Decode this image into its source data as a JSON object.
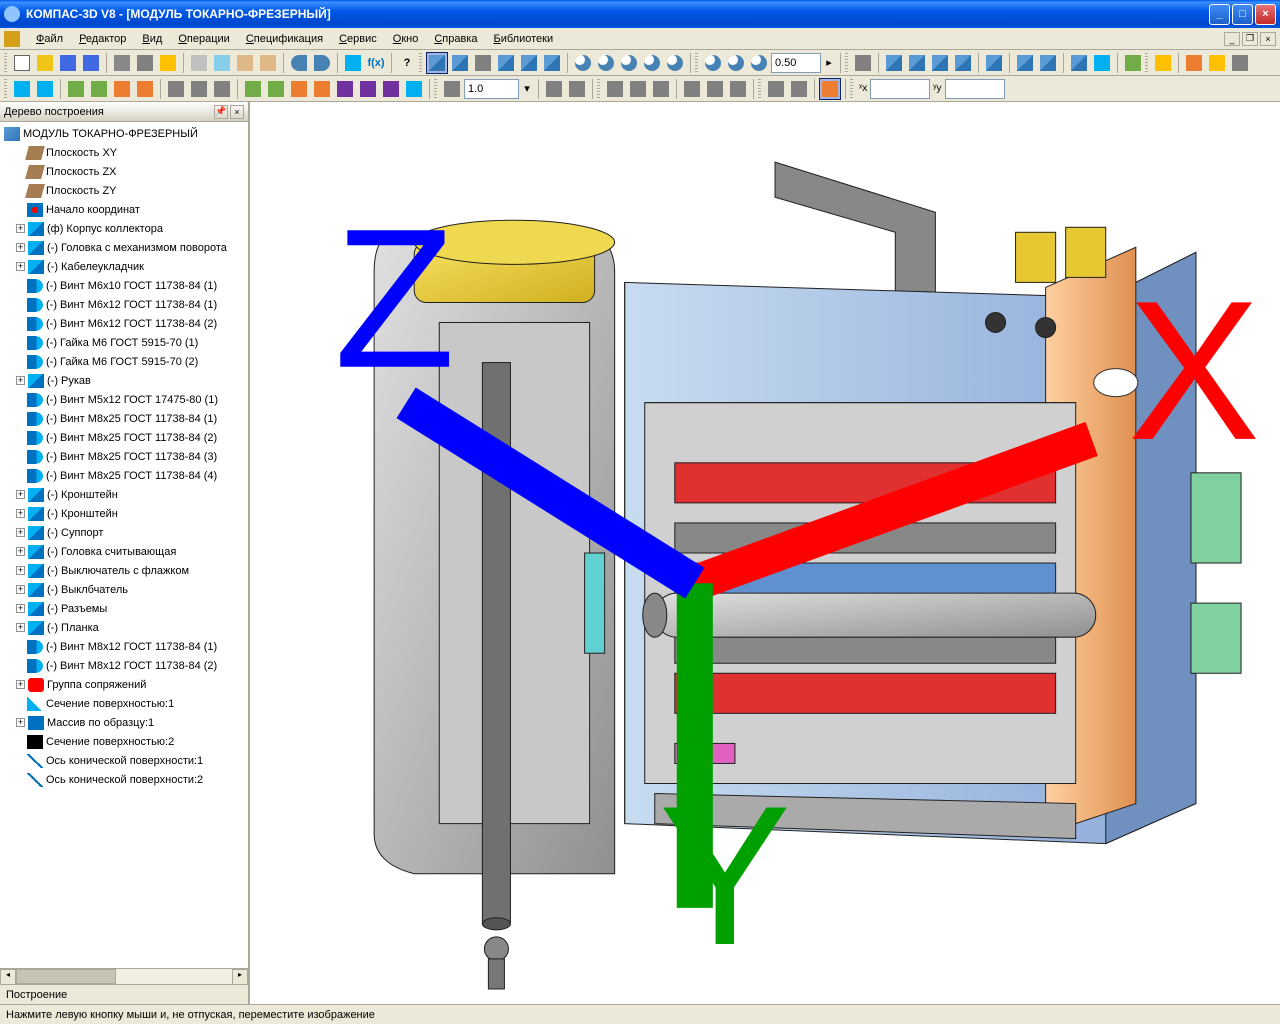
{
  "window": {
    "title": "КОМПАС-3D V8 - [МОДУЛЬ ТОКАРНО-ФРЕЗЕРНЫЙ]"
  },
  "menus": {
    "file": "Файл",
    "edit": "Редактор",
    "view": "Вид",
    "operations": "Операции",
    "specification": "Спецификация",
    "service": "Сервис",
    "window": "Окно",
    "help": "Справка",
    "libraries": "Библиотеки"
  },
  "toolbar": {
    "zoom_value": "0.50",
    "scale_value": "1.0",
    "coord_x": "",
    "coord_y": ""
  },
  "tree": {
    "header": "Дерево построения",
    "tab": "Построение",
    "root": "МОДУЛЬ ТОКАРНО-ФРЕЗЕРНЫЙ",
    "items": [
      {
        "icon": "plane",
        "exp": null,
        "label": "Плоскость XY"
      },
      {
        "icon": "plane",
        "exp": null,
        "label": "Плоскость ZX"
      },
      {
        "icon": "plane",
        "exp": null,
        "label": "Плоскость ZY"
      },
      {
        "icon": "origin",
        "exp": null,
        "label": "Начало координат"
      },
      {
        "icon": "part",
        "exp": "+",
        "label": "(ф) Корпус коллектора"
      },
      {
        "icon": "part",
        "exp": "+",
        "label": "(-) Головка с механизмом поворота"
      },
      {
        "icon": "part",
        "exp": "+",
        "label": "(-) Кабелеукладчик"
      },
      {
        "icon": "screw",
        "exp": null,
        "label": "(-) Винт М6х10 ГОСТ 11738-84 (1)"
      },
      {
        "icon": "screw",
        "exp": null,
        "label": "(-) Винт М6х12 ГОСТ 11738-84 (1)"
      },
      {
        "icon": "screw",
        "exp": null,
        "label": "(-) Винт М6х12 ГОСТ 11738-84 (2)"
      },
      {
        "icon": "screw",
        "exp": null,
        "label": "(-) Гайка М6 ГОСТ 5915-70 (1)"
      },
      {
        "icon": "screw",
        "exp": null,
        "label": "(-) Гайка М6 ГОСТ 5915-70 (2)"
      },
      {
        "icon": "part",
        "exp": "+",
        "label": "(-) Рукав"
      },
      {
        "icon": "screw",
        "exp": null,
        "label": "(-) Винт М5х12 ГОСТ 17475-80 (1)"
      },
      {
        "icon": "screw",
        "exp": null,
        "label": "(-) Винт М8х25 ГОСТ 11738-84 (1)"
      },
      {
        "icon": "screw",
        "exp": null,
        "label": "(-) Винт М8х25 ГОСТ 11738-84 (2)"
      },
      {
        "icon": "screw",
        "exp": null,
        "label": "(-) Винт М8х25 ГОСТ 11738-84 (3)"
      },
      {
        "icon": "screw",
        "exp": null,
        "label": "(-) Винт М8х25 ГОСТ 11738-84 (4)"
      },
      {
        "icon": "part",
        "exp": "+",
        "label": "(-) Кронштейн"
      },
      {
        "icon": "part",
        "exp": "+",
        "label": "(-) Кронштейн"
      },
      {
        "icon": "part",
        "exp": "+",
        "label": "(-) Суппорт"
      },
      {
        "icon": "part",
        "exp": "+",
        "label": "(-) Головка считывающая"
      },
      {
        "icon": "part",
        "exp": "+",
        "label": "(-) Выключатель с флажком"
      },
      {
        "icon": "part",
        "exp": "+",
        "label": "(-) Выклбчатель"
      },
      {
        "icon": "part",
        "exp": "+",
        "label": "(-) Разъемы"
      },
      {
        "icon": "part",
        "exp": "+",
        "label": "(-) Планка"
      },
      {
        "icon": "screw",
        "exp": null,
        "label": "(-) Винт М8х12 ГОСТ 11738-84 (1)"
      },
      {
        "icon": "screw",
        "exp": null,
        "label": "(-) Винт М8х12 ГОСТ 11738-84 (2)"
      },
      {
        "icon": "group",
        "exp": "+",
        "label": "Группа сопряжений"
      },
      {
        "icon": "section",
        "exp": null,
        "label": "Сечение поверхностью:1"
      },
      {
        "icon": "array",
        "exp": "+",
        "label": "Массив по образцу:1"
      },
      {
        "icon": "x",
        "exp": null,
        "label": "Сечение поверхностью:2"
      },
      {
        "icon": "axis",
        "exp": null,
        "label": "Ось конической поверхности:1"
      },
      {
        "icon": "axis",
        "exp": null,
        "label": "Ось конической поверхности:2"
      }
    ]
  },
  "status": {
    "text": "Нажмите левую кнопку мыши и, не отпуская, переместите изображение"
  },
  "model_colors": {
    "body_gray": "#b8b8b8",
    "body_dark": "#888888",
    "yellow": "#e8c832",
    "red": "#e03030",
    "blue_light": "#a8c8f0",
    "blue": "#6090d0",
    "orange": "#f0a060",
    "green": "#80d0a0",
    "cyan": "#60d0d0",
    "magenta": "#e060c0",
    "edge": "#202020"
  },
  "axis": {
    "x": "X",
    "y": "Y",
    "z": "Z"
  }
}
